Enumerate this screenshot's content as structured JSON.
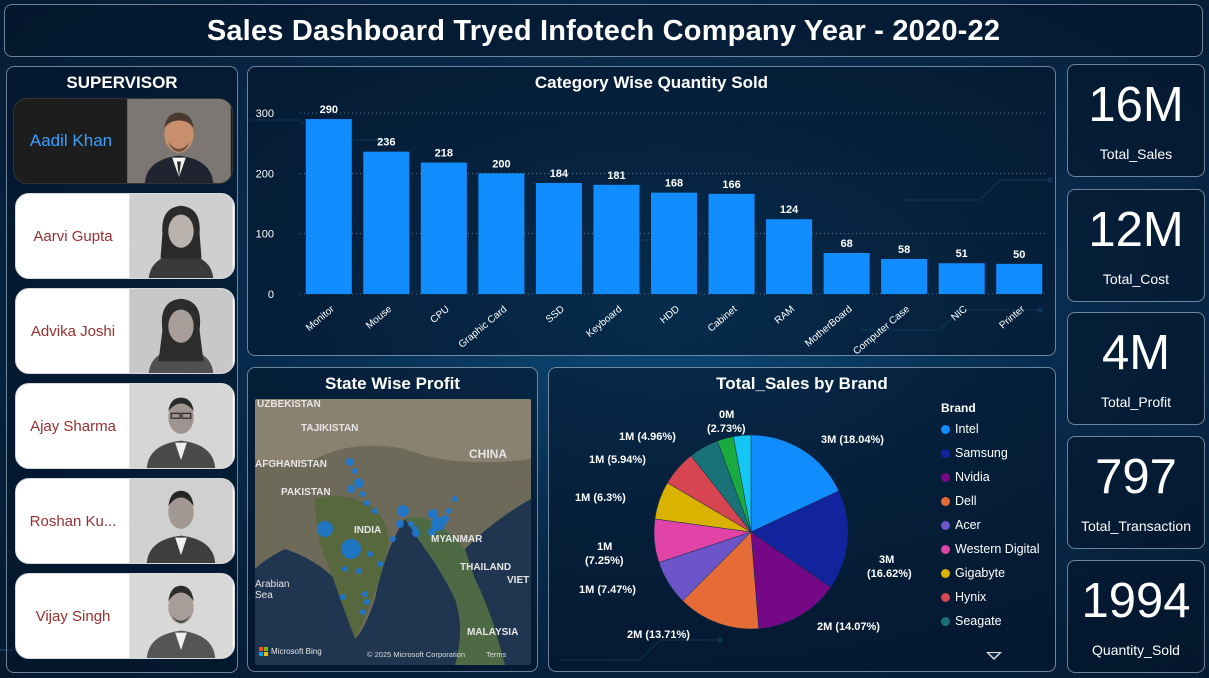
{
  "title": "Sales Dashboard Tryed Infotech Company Year - 2020-22",
  "supervisor": {
    "heading": "SUPERVISOR",
    "items": [
      {
        "name": "Aadil Khan",
        "active": true
      },
      {
        "name": "Aarvi Gupta",
        "active": false
      },
      {
        "name": "Advika Joshi",
        "active": false
      },
      {
        "name": "Ajay Sharma",
        "active": false
      },
      {
        "name": "Roshan Ku...",
        "active": false
      },
      {
        "name": "Vijay Singh",
        "active": false
      }
    ]
  },
  "category_chart": {
    "title": "Category Wise Quantity Sold"
  },
  "map": {
    "title": "State Wise Profit",
    "labels": [
      "UZBEKISTAN",
      "TAJIKISTAN",
      "AFGHANISTAN",
      "PAKISTAN",
      "CHINA",
      "INDIA",
      "MYANMAR",
      "THAILAND",
      "VIET",
      "Arabian Sea",
      "MALAYSIA"
    ],
    "attribution": "© 2025 Microsoft Corporation",
    "terms": "Terms",
    "provider": "Microsoft Bing"
  },
  "pie": {
    "title": "Total_Sales by Brand",
    "legend_title": "Brand",
    "slice_labels": [
      "3M (18.04%)",
      "3M\n(16.62%)",
      "2M (14.07%)",
      "2M (13.71%)",
      "1M (7.47%)",
      "1M\n(7.25%)",
      "1M (6.3%)",
      "1M (5.94%)",
      "1M (4.96%)",
      "0M\n(2.73%)"
    ]
  },
  "kpis": [
    {
      "value": "16M",
      "label": "Total_Sales"
    },
    {
      "value": "12M",
      "label": "Total_Cost"
    },
    {
      "value": "4M",
      "label": "Total_Profit"
    },
    {
      "value": "797",
      "label": "Total_Transaction"
    },
    {
      "value": "1994",
      "label": "Quantity_Sold"
    }
  ],
  "colors": {
    "bar": "#118DFF",
    "accent_name": "#3aa0ff",
    "name_text": "#9a2f2f"
  },
  "chart_data": [
    {
      "type": "bar",
      "title": "Category Wise Quantity Sold",
      "categories": [
        "Monitor",
        "Mouse",
        "CPU",
        "Graphic Card",
        "SSD",
        "Keyboard",
        "HDD",
        "Cabinet",
        "RAM",
        "MotherBoard",
        "Computer Case",
        "NIC",
        "Printer"
      ],
      "values": [
        290,
        236,
        218,
        200,
        184,
        181,
        168,
        166,
        124,
        68,
        58,
        51,
        50
      ],
      "yticks": [
        0,
        100,
        200,
        300
      ],
      "ylim": [
        0,
        310
      ],
      "grid": true
    },
    {
      "type": "pie",
      "title": "Total_Sales by Brand",
      "series": [
        {
          "name": "Intel",
          "value": 18.04,
          "color": "#118DFF"
        },
        {
          "name": "Samsung",
          "value": 16.62,
          "color": "#12239E"
        },
        {
          "name": "Nvidia",
          "value": 14.07,
          "color": "#750985"
        },
        {
          "name": "Dell",
          "value": 13.71,
          "color": "#E66C37"
        },
        {
          "name": "Acer",
          "value": 7.47,
          "color": "#6B55C9"
        },
        {
          "name": "Western Digital",
          "value": 7.25,
          "color": "#E044A7"
        },
        {
          "name": "Gigabyte",
          "value": 6.3,
          "color": "#D9B300"
        },
        {
          "name": "Hynix",
          "value": 5.94,
          "color": "#D64550"
        },
        {
          "name": "Seagate",
          "value": 4.96,
          "color": "#197278"
        },
        {
          "name": "",
          "value": 2.73,
          "color": "#1AAB40"
        },
        {
          "name": "",
          "value": 2.91,
          "color": "#15C6F4"
        }
      ],
      "legend_position": "right"
    }
  ]
}
